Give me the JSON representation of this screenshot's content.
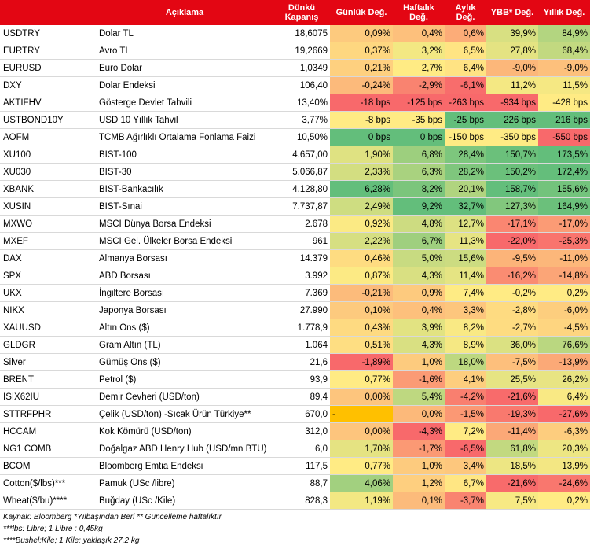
{
  "header": {
    "code": "",
    "desc": "Açıklama",
    "close": "Dünkü Kapanış",
    "daily": "Günlük Değ.",
    "weekly": "Haftalık Değ.",
    "monthly": "Aylık Değ.",
    "ytd": "YBB* Değ.",
    "yearly": "Yıllık Değ."
  },
  "colors": {
    "header_bg": "#e30613",
    "strong_green": "#63be7b",
    "yellow": "#ffeb84",
    "strong_red": "#f8696b",
    "special_orange": "#ffc000"
  },
  "rows": [
    {
      "code": "USDTRY",
      "desc": "Dolar TL",
      "close": "18,6075",
      "daily": "0,09%",
      "weekly": "0,4%",
      "monthly": "0,6%",
      "ytd": "39,9%",
      "yearly": "84,9%"
    },
    {
      "code": "EURTRY",
      "desc": "Avro TL",
      "close": "19,2669",
      "daily": "0,37%",
      "weekly": "3,2%",
      "monthly": "6,5%",
      "ytd": "27,8%",
      "yearly": "68,4%"
    },
    {
      "code": "EURUSD",
      "desc": "Euro Dolar",
      "close": "1,0349",
      "daily": "0,21%",
      "weekly": "2,7%",
      "monthly": "6,4%",
      "ytd": "-9,0%",
      "yearly": "-9,0%"
    },
    {
      "code": "DXY",
      "desc": "Dolar Endeksi",
      "close": "106,40",
      "daily": "-0,24%",
      "weekly": "-2,9%",
      "monthly": "-6,1%",
      "ytd": "11,2%",
      "yearly": "11,5%"
    },
    {
      "code": "AKTIFHV",
      "desc": "Gösterge Devlet Tahvili",
      "close": "13,40%",
      "daily": "-18 bps",
      "weekly": "-125 bps",
      "monthly": "-263 bps",
      "ytd": "-934 bps",
      "yearly": "-428 bps"
    },
    {
      "code": "USTBOND10Y",
      "desc": "USD 10 Yıllık Tahvil",
      "close": "3,77%",
      "daily": "-8 bps",
      "weekly": "-35 bps",
      "monthly": "-25 bps",
      "ytd": "226 bps",
      "yearly": "216 bps"
    },
    {
      "code": "AOFM",
      "desc": "TCMB Ağırlıklı Ortalama Fonlama Faizi",
      "close": "10,50%",
      "daily": "0 bps",
      "weekly": "0 bps",
      "monthly": "-150 bps",
      "ytd": "-350 bps",
      "yearly": "-550 bps"
    },
    {
      "code": "XU100",
      "desc": "BIST-100",
      "close": "4.657,00",
      "daily": "1,90%",
      "weekly": "6,8%",
      "monthly": "28,4%",
      "ytd": "150,7%",
      "yearly": "173,5%"
    },
    {
      "code": "XU030",
      "desc": "BIST-30",
      "close": "5.066,87",
      "daily": "2,33%",
      "weekly": "6,3%",
      "monthly": "28,2%",
      "ytd": "150,2%",
      "yearly": "172,4%"
    },
    {
      "code": "XBANK",
      "desc": "BIST-Bankacılık",
      "close": "4.128,80",
      "daily": "6,28%",
      "weekly": "8,2%",
      "monthly": "20,1%",
      "ytd": "158,7%",
      "yearly": "155,6%"
    },
    {
      "code": "XUSIN",
      "desc": "BIST-Sınai",
      "close": "7.737,87",
      "daily": "2,49%",
      "weekly": "9,2%",
      "monthly": "32,7%",
      "ytd": "127,3%",
      "yearly": "164,9%"
    },
    {
      "code": "MXWO",
      "desc": "MSCI Dünya Borsa Endeksi",
      "close": "2.678",
      "daily": "0,92%",
      "weekly": "4,8%",
      "monthly": "12,7%",
      "ytd": "-17,1%",
      "yearly": "-17,0%"
    },
    {
      "code": "MXEF",
      "desc": "MSCI Gel. Ülkeler Borsa Endeksi",
      "close": "961",
      "daily": "2,22%",
      "weekly": "6,7%",
      "monthly": "11,3%",
      "ytd": "-22,0%",
      "yearly": "-25,3%"
    },
    {
      "code": "DAX",
      "desc": "Almanya Borsası",
      "close": "14.379",
      "daily": "0,46%",
      "weekly": "5,0%",
      "monthly": "15,6%",
      "ytd": "-9,5%",
      "yearly": "-11,0%"
    },
    {
      "code": "SPX",
      "desc": "ABD Borsası",
      "close": "3.992",
      "daily": "0,87%",
      "weekly": "4,3%",
      "monthly": "11,4%",
      "ytd": "-16,2%",
      "yearly": "-14,8%"
    },
    {
      "code": "UKX",
      "desc": "İngiltere Borsası",
      "close": "7.369",
      "daily": "-0,21%",
      "weekly": "0,9%",
      "monthly": "7,4%",
      "ytd": "-0,2%",
      "yearly": "0,2%"
    },
    {
      "code": "NIKX",
      "desc": "Japonya Borsası",
      "close": "27.990",
      "daily": "0,10%",
      "weekly": "0,4%",
      "monthly": "3,3%",
      "ytd": "-2,8%",
      "yearly": "-6,0%"
    },
    {
      "code": "XAUUSD",
      "desc": "Altın Ons ($)",
      "close": "1.778,9",
      "daily": "0,43%",
      "weekly": "3,9%",
      "monthly": "8,2%",
      "ytd": "-2,7%",
      "yearly": "-4,5%"
    },
    {
      "code": "GLDGR",
      "desc": "Gram Altın (TL)",
      "close": "1.064",
      "daily": "0,51%",
      "weekly": "4,3%",
      "monthly": "8,9%",
      "ytd": "36,0%",
      "yearly": "76,6%"
    },
    {
      "code": "Silver",
      "desc": "Gümüş Ons ($)",
      "close": "21,6",
      "daily": "-1,89%",
      "weekly": "1,0%",
      "monthly": "18,0%",
      "ytd": "-7,5%",
      "yearly": "-13,9%"
    },
    {
      "code": "BRENT",
      "desc": "Petrol ($)",
      "close": "93,9",
      "daily": "0,77%",
      "weekly": "-1,6%",
      "monthly": "4,1%",
      "ytd": "25,5%",
      "yearly": "26,2%"
    },
    {
      "code": "ISIX62IU",
      "desc": "Demir Cevheri (USD/ton)",
      "close": "89,4",
      "daily": "0,00%",
      "weekly": "5,4%",
      "monthly": "-4,2%",
      "ytd": "-21,6%",
      "yearly": "6,4%"
    },
    {
      "code": "STTRFPHR",
      "desc": "Çelik (USD/ton) -Sıcak Ürün Türkiye**",
      "close": "670,0",
      "daily": "-",
      "weekly": "0,0%",
      "monthly": "-1,5%",
      "ytd": "-19,3%",
      "yearly": "-27,6%"
    },
    {
      "code": "HCCAM",
      "desc": "Kok Kömürü (USD/ton)",
      "close": "312,0",
      "daily": "0,00%",
      "weekly": "-4,3%",
      "monthly": "7,2%",
      "ytd": "-11,4%",
      "yearly": "-6,3%"
    },
    {
      "code": "NG1 COMB",
      "desc": "Doğalgaz ABD Henry Hub (USD/mn BTU)",
      "close": "6,0",
      "daily": "1,70%",
      "weekly": "-1,7%",
      "monthly": "-6,5%",
      "ytd": "61,8%",
      "yearly": "20,3%"
    },
    {
      "code": "BCOM",
      "desc": "Bloomberg Emtia Endeksi",
      "close": "117,5",
      "daily": "0,77%",
      "weekly": "1,0%",
      "monthly": "3,4%",
      "ytd": "18,5%",
      "yearly": "13,9%"
    },
    {
      "code": "Cotton($/lbs)***",
      "desc": "Pamuk (USc /libre)",
      "close": "88,7",
      "daily": "4,06%",
      "weekly": "1,2%",
      "monthly": "6,7%",
      "ytd": "-21,6%",
      "yearly": "-24,6%"
    },
    {
      "code": "Wheat($/bu)****",
      "desc": "Buğday (USc /Kile)",
      "close": "828,3",
      "daily": "1,19%",
      "weekly": "0,1%",
      "monthly": "-3,7%",
      "ytd": "7,5%",
      "yearly": "0,2%"
    }
  ],
  "footnotes": [
    "Kaynak: Bloomberg *Yılbaşından Beri  ** Güncelleme haftalıktır",
    "***lbs: Libre; 1 Libre : 0,45kg",
    "****Bushel:Kile; 1 Kile: yaklaşık 27,2 kg"
  ]
}
